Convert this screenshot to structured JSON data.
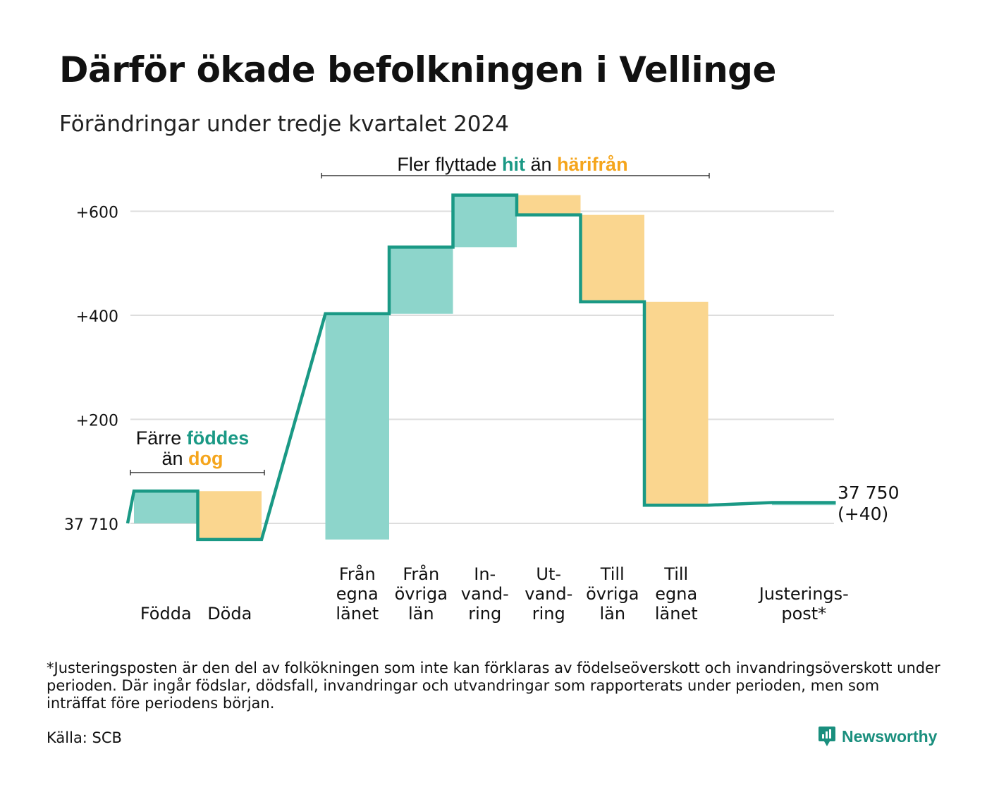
{
  "title": "Därför ökade befolkningen i Vellinge",
  "subtitle": "Förändringar under tredje kvartalet 2024",
  "colors": {
    "increase": "#8dd5cb",
    "decrease": "#fad68f",
    "line": "#1a9985",
    "accent_teal": "#1a9985",
    "accent_orange": "#f5a51c",
    "grid": "#dddddd"
  },
  "annotations": {
    "left": {
      "line1_pre": "Färre ",
      "line1_hl": "föddes",
      "line2_pre": "än ",
      "line2_hl": "dog"
    },
    "top": {
      "pre": "Fler flyttade ",
      "hl1": "hit",
      "mid": " än ",
      "hl2": "härifrån"
    }
  },
  "chart_data": {
    "type": "waterfall",
    "title": "Därför ökade befolkningen i Vellinge",
    "subtitle": "Förändringar under tredje kvartalet 2024",
    "unit": "change in population",
    "start_value": 37710,
    "end_value": 37750,
    "end_label_1": "37 750",
    "end_label_2": "(+40)",
    "y_ticks": [
      {
        "value": 0,
        "label": "37 710"
      },
      {
        "value": 200,
        "label": "+200"
      },
      {
        "value": 400,
        "label": "+400"
      },
      {
        "value": 600,
        "label": "+600"
      }
    ],
    "ylim": [
      -40,
      640
    ],
    "grid": true,
    "steps": [
      {
        "label_lines": [
          "Födda"
        ],
        "value": 62,
        "slot": 0
      },
      {
        "label_lines": [
          "Döda"
        ],
        "value": -93,
        "slot": 1
      },
      {
        "label_lines": [
          "Från",
          "egna",
          "länet"
        ],
        "value": 434,
        "slot": 3
      },
      {
        "label_lines": [
          "Från",
          "övriga",
          "län"
        ],
        "value": 128,
        "slot": 4
      },
      {
        "label_lines": [
          "In-",
          "vand-",
          "ring"
        ],
        "value": 100,
        "slot": 5
      },
      {
        "label_lines": [
          "Ut-",
          "vand-",
          "ring"
        ],
        "value": -38,
        "slot": 6
      },
      {
        "label_lines": [
          "Till",
          "övriga",
          "län"
        ],
        "value": -167,
        "slot": 7
      },
      {
        "label_lines": [
          "Till",
          "egna",
          "länet"
        ],
        "value": -391,
        "slot": 8
      },
      {
        "label_lines": [
          "Justerings-",
          "post*"
        ],
        "value": 5,
        "slot": 10
      }
    ]
  },
  "footnote": "*Justeringsposten är den del av folkökningen som inte kan förklaras av födelseöverskott och invandringsöverskott under perioden. Där ingår födslar, dödsfall, invandringar och utvandringar som rapporterats under perioden, men som inträffat före periodens början.",
  "source": "Källa: SCB",
  "brand": {
    "name": "Newsworthy",
    "icon": "newsworthy-chart-bubble-icon"
  }
}
